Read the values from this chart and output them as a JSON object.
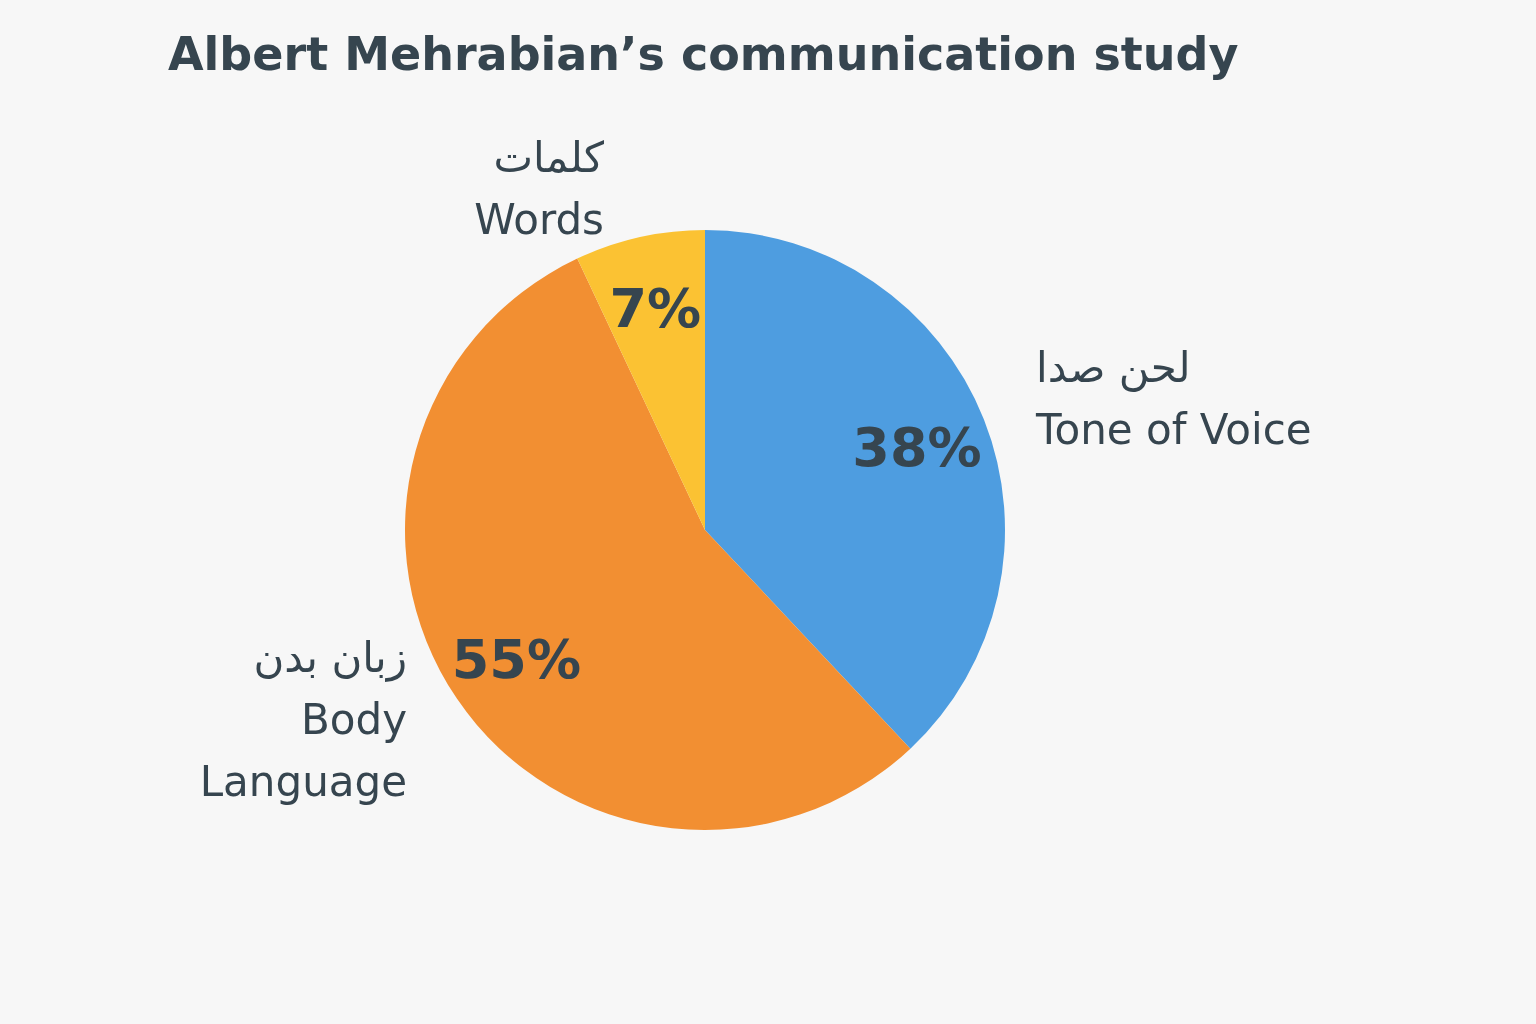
{
  "chart_data": {
    "type": "pie",
    "title": "Albert Mehrabian’s communication study",
    "categories": [
      "لحن صدا\nTone of Voice",
      "زبان بدن\nBody\nLanguage",
      "کلمات\nWords"
    ],
    "values": [
      38,
      55,
      7
    ],
    "colors": [
      "#4e9de0",
      "#f28f32",
      "#fbc233"
    ],
    "value_labels": [
      "38%",
      "55%",
      "7%"
    ]
  }
}
